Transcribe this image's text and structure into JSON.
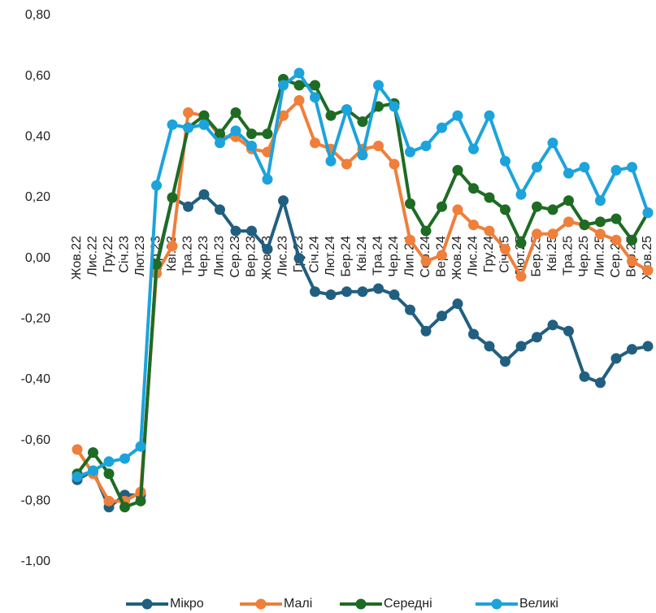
{
  "chart_data": {
    "type": "line",
    "categories": [
      "Жов.22",
      "Лис.22",
      "Гру.22",
      "Січ.23",
      "Лют.23",
      "Бер.23",
      "Кві.23",
      "Тра.23",
      "Чер.23",
      "Лип.23",
      "Сер.23",
      "Вер.23",
      "Жов.23",
      "Лис.23",
      "Гру.23",
      "Січ.24",
      "Лют.24",
      "Бер.24",
      "Кві.24",
      "Тра.24",
      "Чер.24",
      "Лип.24",
      "Сер.24",
      "Вер.24",
      "Жов.24",
      "Лис.24",
      "Гру.24",
      "Січ.25",
      "Лют.25",
      "Бер.25",
      "Кві.25",
      "Тра.25",
      "Чер.25",
      "Лип.25",
      "Сер.25",
      "Вер.25",
      "Жов.25"
    ],
    "series": [
      {
        "name": "Мікро",
        "color": "#215f80",
        "values": [
          -0.73,
          -0.7,
          -0.82,
          -0.78,
          -0.78,
          -0.03,
          0.2,
          0.17,
          0.21,
          0.16,
          0.09,
          0.09,
          0.03,
          0.19,
          0.0,
          -0.11,
          -0.12,
          -0.11,
          -0.11,
          -0.1,
          -0.12,
          -0.17,
          -0.24,
          -0.19,
          -0.15,
          -0.25,
          -0.29,
          -0.34,
          -0.29,
          -0.26,
          -0.22,
          -0.24,
          -0.39,
          -0.41,
          -0.33,
          -0.3,
          -0.29
        ]
      },
      {
        "name": "Малі",
        "color": "#ef7f3a",
        "values": [
          -0.63,
          -0.71,
          -0.8,
          -0.8,
          -0.77,
          -0.05,
          0.04,
          0.48,
          0.47,
          0.4,
          0.4,
          0.36,
          0.35,
          0.47,
          0.52,
          0.38,
          0.36,
          0.31,
          0.36,
          0.37,
          0.31,
          0.06,
          -0.01,
          0.01,
          0.16,
          0.11,
          0.09,
          0.03,
          -0.06,
          0.08,
          0.08,
          0.12,
          0.11,
          0.08,
          0.06,
          -0.01,
          -0.04
        ]
      },
      {
        "name": "Середні",
        "color": "#1e6b24",
        "values": [
          -0.71,
          -0.64,
          -0.71,
          -0.82,
          -0.8,
          -0.02,
          0.2,
          0.43,
          0.47,
          0.41,
          0.48,
          0.41,
          0.41,
          0.59,
          0.57,
          0.57,
          0.47,
          0.49,
          0.45,
          0.5,
          0.51,
          0.18,
          0.09,
          0.17,
          0.29,
          0.23,
          0.2,
          0.16,
          0.05,
          0.17,
          0.16,
          0.19,
          0.11,
          0.12,
          0.13,
          0.06,
          0.15
        ]
      },
      {
        "name": "Великі",
        "color": "#1ca3dc",
        "values": [
          -0.72,
          -0.7,
          -0.67,
          -0.66,
          -0.62,
          0.24,
          0.44,
          0.43,
          0.44,
          0.38,
          0.42,
          0.37,
          0.26,
          0.57,
          0.61,
          0.53,
          0.32,
          0.49,
          0.34,
          0.57,
          0.5,
          0.35,
          0.37,
          0.43,
          0.47,
          0.36,
          0.47,
          0.32,
          0.21,
          0.3,
          0.38,
          0.28,
          0.3,
          0.19,
          0.29,
          0.3,
          0.15
        ]
      }
    ],
    "ylim": [
      -1.0,
      0.8
    ],
    "yticks": [
      {
        "value": -1.0,
        "label": "-1,00"
      },
      {
        "value": -0.8,
        "label": "-0,80"
      },
      {
        "value": -0.6,
        "label": "-0,60"
      },
      {
        "value": -0.4,
        "label": "-0,40"
      },
      {
        "value": -0.2,
        "label": "-0,20"
      },
      {
        "value": 0,
        "label": "0,00"
      },
      {
        "value": 0.2,
        "label": "0,20"
      },
      {
        "value": 0.4,
        "label": "0,40"
      },
      {
        "value": 0.6,
        "label": "0,60"
      },
      {
        "value": 0.8,
        "label": "0,80"
      }
    ],
    "grid": false,
    "legend": "bottom"
  }
}
